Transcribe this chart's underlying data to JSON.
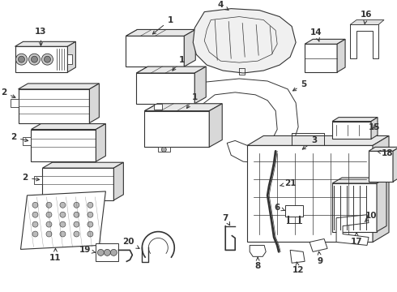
{
  "bg_color": "#ffffff",
  "line_color": "#333333",
  "fig_width": 4.9,
  "fig_height": 3.6,
  "dpi": 100
}
